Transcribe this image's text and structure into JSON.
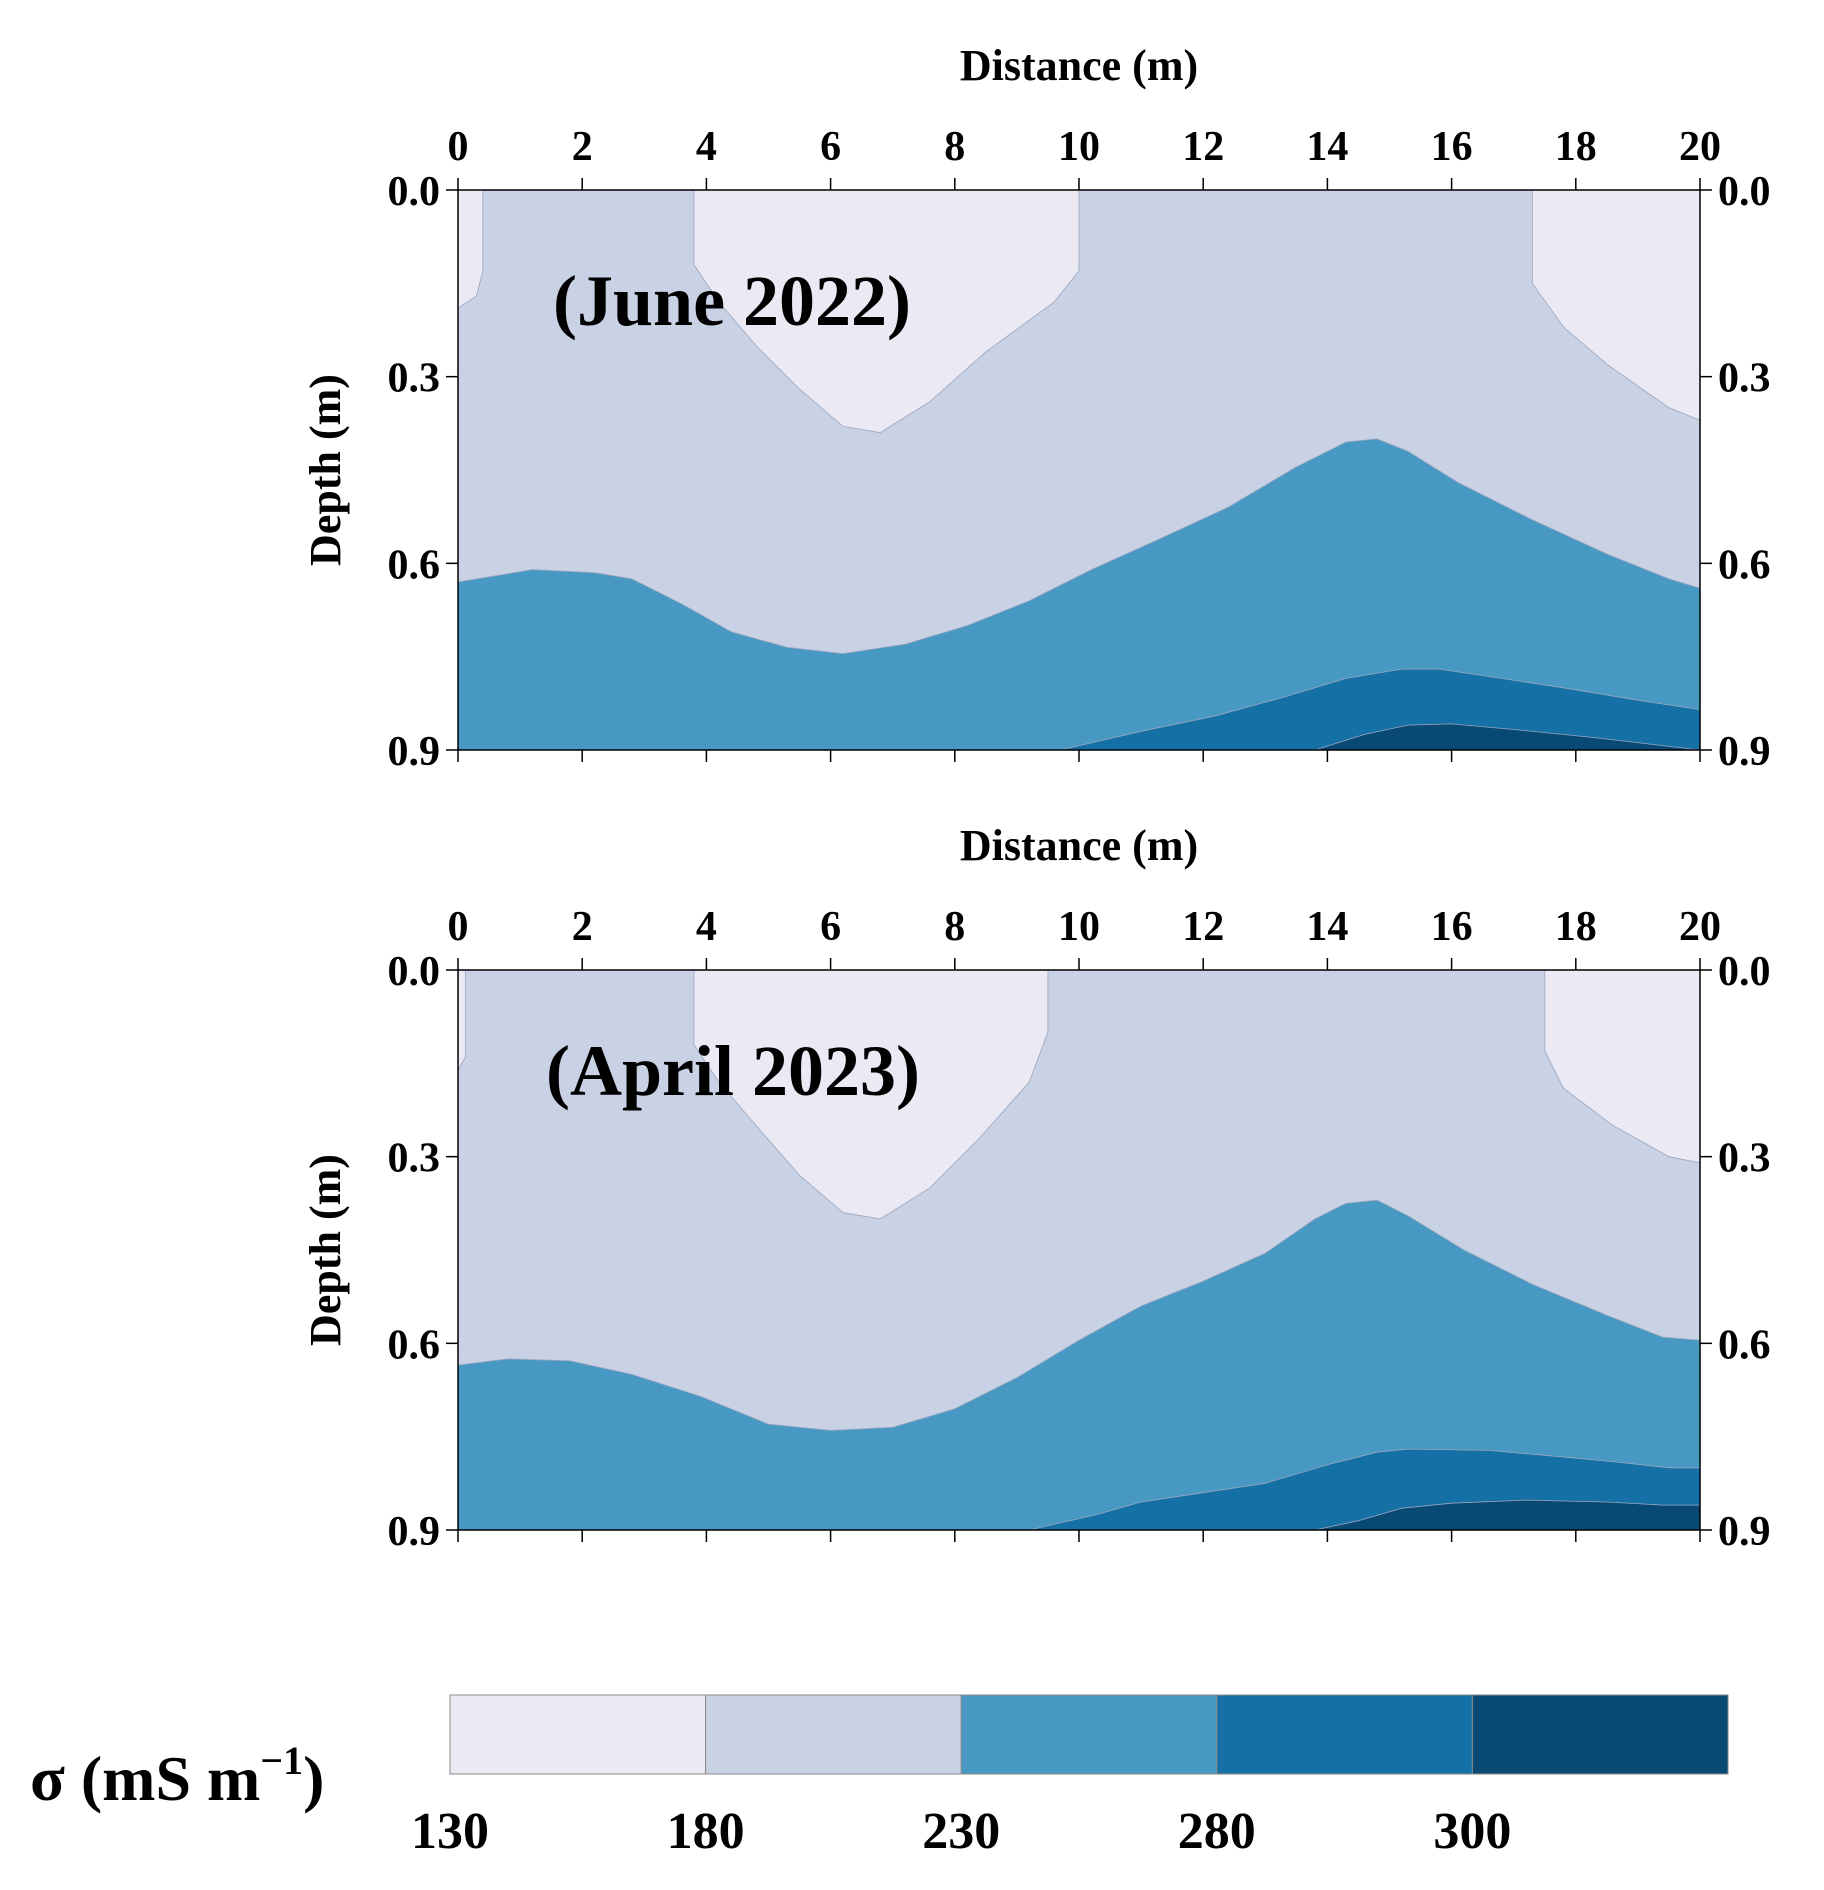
{
  "chart_data": {
    "type": "contour",
    "panels": [
      {
        "label": "(June 2022)",
        "xlabel": "Distance (m)",
        "ylabel": "Depth (m)",
        "xlim": [
          0,
          20
        ],
        "ylim": [
          0,
          0.9
        ],
        "xticks": [
          0,
          2,
          4,
          6,
          8,
          10,
          12,
          14,
          16,
          18,
          20
        ],
        "yticks": [
          0.0,
          0.3,
          0.6,
          0.9
        ],
        "xtick_labels": [
          "0",
          "2",
          "4",
          "6",
          "8",
          "10",
          "12",
          "14",
          "16",
          "18",
          "20"
        ],
        "ytick_labels": [
          "0.0",
          "0.3",
          "0.6",
          "0.9"
        ],
        "regions": [
          {
            "level": "130-180",
            "polygon": [
              [
                0,
                0
              ],
              [
                0.4,
                0
              ],
              [
                0.4,
                0.13
              ],
              [
                0.3,
                0.17
              ],
              [
                0,
                0.19
              ]
            ]
          },
          {
            "level": "130-180",
            "polygon": [
              [
                3.8,
                0
              ],
              [
                10,
                0
              ],
              [
                10,
                0.13
              ],
              [
                9.6,
                0.18
              ],
              [
                8.5,
                0.26
              ],
              [
                7.6,
                0.34
              ],
              [
                6.8,
                0.39
              ],
              [
                6.2,
                0.38
              ],
              [
                5.5,
                0.32
              ],
              [
                4.8,
                0.25
              ],
              [
                4.2,
                0.18
              ],
              [
                3.8,
                0.12
              ]
            ]
          },
          {
            "level": "130-180",
            "polygon": [
              [
                17.3,
                0
              ],
              [
                20,
                0
              ],
              [
                20,
                0.37
              ],
              [
                19.5,
                0.35
              ],
              [
                18.5,
                0.28
              ],
              [
                17.8,
                0.22
              ],
              [
                17.3,
                0.15
              ]
            ]
          },
          {
            "level": "230-280",
            "polygon": [
              [
                0,
                0.63
              ],
              [
                0.6,
                0.62
              ],
              [
                1.2,
                0.61
              ],
              [
                2.2,
                0.615
              ],
              [
                2.8,
                0.625
              ],
              [
                3.6,
                0.665
              ],
              [
                4.4,
                0.71
              ],
              [
                5.3,
                0.735
              ],
              [
                6.2,
                0.745
              ],
              [
                7.2,
                0.73
              ],
              [
                8.2,
                0.7
              ],
              [
                9.2,
                0.66
              ],
              [
                10.2,
                0.61
              ],
              [
                11.2,
                0.565
              ],
              [
                12.4,
                0.51
              ],
              [
                13.5,
                0.445
              ],
              [
                14.3,
                0.405
              ],
              [
                14.8,
                0.4
              ],
              [
                15.3,
                0.42
              ],
              [
                16.1,
                0.47
              ],
              [
                17.3,
                0.53
              ],
              [
                18.5,
                0.585
              ],
              [
                19.5,
                0.625
              ],
              [
                20,
                0.64
              ],
              [
                20,
                0.9
              ],
              [
                0,
                0.9
              ]
            ]
          },
          {
            "level": "280-300",
            "polygon": [
              [
                9.7,
                0.9
              ],
              [
                11,
                0.87
              ],
              [
                12.2,
                0.845
              ],
              [
                13.3,
                0.815
              ],
              [
                14.3,
                0.785
              ],
              [
                15.2,
                0.77
              ],
              [
                15.8,
                0.77
              ],
              [
                16.8,
                0.785
              ],
              [
                17.8,
                0.8
              ],
              [
                19,
                0.82
              ],
              [
                20,
                0.835
              ],
              [
                20,
                0.9
              ]
            ]
          },
          {
            "level": ">300",
            "polygon": [
              [
                13.8,
                0.9
              ],
              [
                14.6,
                0.875
              ],
              [
                15.3,
                0.86
              ],
              [
                16,
                0.858
              ],
              [
                17,
                0.867
              ],
              [
                18.3,
                0.88
              ],
              [
                19.4,
                0.893
              ],
              [
                20,
                0.9
              ]
            ]
          }
        ]
      },
      {
        "label": "(April 2023)",
        "xlabel": "Distance (m)",
        "ylabel": "Depth (m)",
        "xlim": [
          0,
          20
        ],
        "ylim": [
          0,
          0.9
        ],
        "xticks": [
          0,
          2,
          4,
          6,
          8,
          10,
          12,
          14,
          16,
          18,
          20
        ],
        "yticks": [
          0.0,
          0.3,
          0.6,
          0.9
        ],
        "xtick_labels": [
          "0",
          "2",
          "4",
          "6",
          "8",
          "10",
          "12",
          "14",
          "16",
          "18",
          "20"
        ],
        "ytick_labels": [
          "0.0",
          "0.3",
          "0.6",
          "0.9"
        ],
        "regions": [
          {
            "level": "130-180",
            "polygon": [
              [
                0,
                0
              ],
              [
                0.12,
                0
              ],
              [
                0.12,
                0.14
              ],
              [
                0,
                0.16
              ]
            ]
          },
          {
            "level": "130-180",
            "polygon": [
              [
                3.8,
                0
              ],
              [
                9.5,
                0
              ],
              [
                9.5,
                0.1
              ],
              [
                9.2,
                0.18
              ],
              [
                8.4,
                0.27
              ],
              [
                7.6,
                0.35
              ],
              [
                6.8,
                0.4
              ],
              [
                6.2,
                0.39
              ],
              [
                5.5,
                0.33
              ],
              [
                4.8,
                0.25
              ],
              [
                4.2,
                0.18
              ],
              [
                3.8,
                0.12
              ]
            ]
          },
          {
            "level": "130-180",
            "polygon": [
              [
                17.5,
                0
              ],
              [
                20,
                0
              ],
              [
                20,
                0.31
              ],
              [
                19.5,
                0.3
              ],
              [
                18.6,
                0.25
              ],
              [
                17.8,
                0.19
              ],
              [
                17.5,
                0.13
              ]
            ]
          },
          {
            "level": "230-280",
            "polygon": [
              [
                0,
                0.635
              ],
              [
                0.8,
                0.625
              ],
              [
                1.8,
                0.628
              ],
              [
                2.8,
                0.65
              ],
              [
                3.9,
                0.685
              ],
              [
                5,
                0.73
              ],
              [
                6,
                0.74
              ],
              [
                7,
                0.735
              ],
              [
                8,
                0.705
              ],
              [
                9,
                0.655
              ],
              [
                10,
                0.595
              ],
              [
                11,
                0.54
              ],
              [
                12,
                0.5
              ],
              [
                13,
                0.455
              ],
              [
                13.8,
                0.4
              ],
              [
                14.3,
                0.375
              ],
              [
                14.8,
                0.37
              ],
              [
                15.3,
                0.395
              ],
              [
                16.2,
                0.45
              ],
              [
                17.3,
                0.505
              ],
              [
                18.5,
                0.555
              ],
              [
                19.4,
                0.59
              ],
              [
                20,
                0.595
              ],
              [
                20,
                0.9
              ],
              [
                0,
                0.9
              ]
            ]
          },
          {
            "level": "280-300",
            "polygon": [
              [
                9.2,
                0.9
              ],
              [
                10.3,
                0.875
              ],
              [
                11,
                0.855
              ],
              [
                12,
                0.84
              ],
              [
                13,
                0.825
              ],
              [
                14,
                0.795
              ],
              [
                14.8,
                0.775
              ],
              [
                15.3,
                0.77
              ],
              [
                16.6,
                0.772
              ],
              [
                17.5,
                0.78
              ],
              [
                18.6,
                0.79
              ],
              [
                19.5,
                0.8
              ],
              [
                20,
                0.8
              ],
              [
                20,
                0.9
              ]
            ]
          },
          {
            "level": ">300",
            "polygon": [
              [
                13.8,
                0.9
              ],
              [
                14.5,
                0.885
              ],
              [
                15.2,
                0.865
              ],
              [
                16,
                0.857
              ],
              [
                17.2,
                0.852
              ],
              [
                18.5,
                0.855
              ],
              [
                19.4,
                0.86
              ],
              [
                20,
                0.86
              ],
              [
                20,
                0.9
              ]
            ]
          }
        ]
      }
    ],
    "colorbar": {
      "title_main": "σ (mS m",
      "title_sup": "−1",
      "title_end": ")",
      "ticks": [
        "130",
        "180",
        "230",
        "280",
        "300"
      ],
      "levels": [
        "130-180",
        "180-230",
        "230-280",
        "280-300",
        ">300"
      ],
      "colors": [
        "#eae9f4",
        "#c9d1e4",
        "#4898c4",
        "#1570a6",
        "#084a74"
      ]
    },
    "background_level": "180-230"
  }
}
